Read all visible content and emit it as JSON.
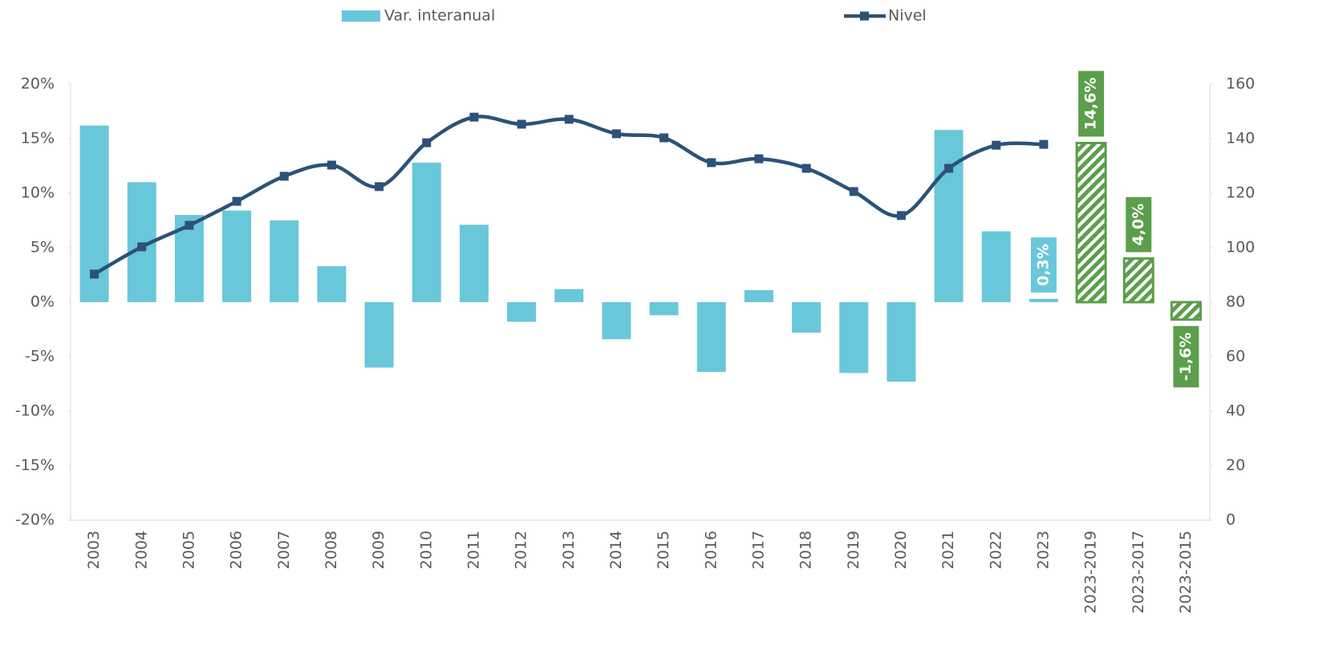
{
  "chart_data": {
    "type": "bar-line",
    "categories": [
      "2003",
      "2004",
      "2005",
      "2006",
      "2007",
      "2008",
      "2009",
      "2010",
      "2011",
      "2012",
      "2013",
      "2014",
      "2015",
      "2016",
      "2017",
      "2018",
      "2019",
      "2020",
      "2021",
      "2022",
      "2023",
      "2023-2019",
      "2023-2017",
      "2023-2015"
    ],
    "series": [
      {
        "name": "Var. interanual",
        "type": "bar",
        "color": "#69c7da",
        "values": [
          16.2,
          11.0,
          8.0,
          8.4,
          7.5,
          3.3,
          -6.0,
          12.8,
          7.1,
          -1.8,
          1.2,
          -3.4,
          -1.2,
          -6.4,
          1.1,
          -2.8,
          -6.5,
          -7.3,
          15.8,
          6.5,
          0.3,
          14.6,
          4.0,
          -1.6
        ],
        "colors": [
          "#69c7da",
          "#69c7da",
          "#69c7da",
          "#69c7da",
          "#69c7da",
          "#69c7da",
          "#69c7da",
          "#69c7da",
          "#69c7da",
          "#69c7da",
          "#69c7da",
          "#69c7da",
          "#69c7da",
          "#69c7da",
          "#69c7da",
          "#69c7da",
          "#69c7da",
          "#69c7da",
          "#69c7da",
          "#69c7da",
          "#69c7da",
          "#5b9e4b",
          "#5b9e4b",
          "#5b9e4b"
        ],
        "value_labels": [
          null,
          null,
          null,
          null,
          null,
          null,
          null,
          null,
          null,
          null,
          null,
          null,
          null,
          null,
          null,
          null,
          null,
          null,
          null,
          null,
          "0,3%",
          "14,6%",
          "4,0%",
          "-1,6%"
        ]
      },
      {
        "name": "Nivel",
        "type": "line",
        "axis": "y2",
        "color": "#2b5278",
        "values": [
          90.3,
          100.3,
          108.2,
          117.0,
          126.2,
          130.3,
          122.4,
          138.5,
          147.9,
          145.3,
          147.1,
          141.8,
          140.3,
          131.2,
          132.6,
          129.1,
          120.6,
          111.8,
          129.1,
          137.6,
          137.9,
          null,
          null,
          null
        ]
      }
    ],
    "ylim": [
      -20,
      20
    ],
    "yticks": [
      {
        "value": 20,
        "label": "20%"
      },
      {
        "value": 15,
        "label": "15%"
      },
      {
        "value": 10,
        "label": "10%"
      },
      {
        "value": 5,
        "label": "5%"
      },
      {
        "value": 0,
        "label": "0%"
      },
      {
        "value": -5,
        "label": "-5%"
      },
      {
        "value": -10,
        "label": "-10%"
      },
      {
        "value": -15,
        "label": "-15%"
      },
      {
        "value": -20,
        "label": "-20%"
      }
    ],
    "y2lim": [
      0,
      160
    ],
    "y2ticks": [
      160,
      140,
      120,
      100,
      80,
      60,
      40,
      20,
      0
    ],
    "legend": "top"
  }
}
